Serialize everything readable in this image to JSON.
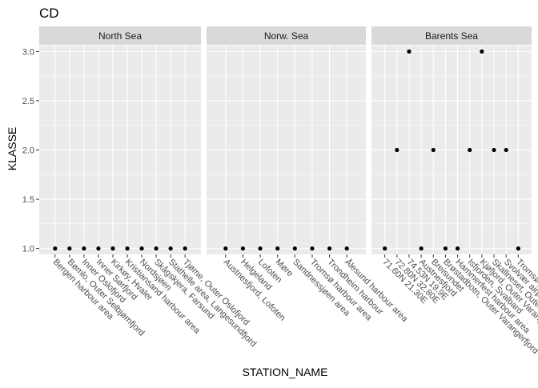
{
  "chart_data": {
    "type": "scatter",
    "title": "CD",
    "xlabel": "STATION_NAME",
    "ylabel": "KLASSE",
    "ylim": [
      0.94,
      3.06
    ],
    "yticks": [
      1.0,
      1.5,
      2.0,
      2.5,
      3.0
    ],
    "ytick_labels": [
      "1.0",
      "1.5",
      "2.0",
      "2.5",
      "3.0"
    ],
    "grid": true,
    "facet_type": "facet_wrap",
    "colors": {
      "panel_bg": "#ebebeb",
      "strip_bg": "#d9d9d9",
      "grid": "#ffffff",
      "point": "#000000",
      "text": "#4d4d4d",
      "title": "#000000"
    },
    "panels": [
      {
        "strip": "North Sea",
        "categories": [
          "Bergen harbour area",
          "Bømlo, Outer Selbjørnfjord",
          "Inner Oslofjord",
          "Inner Sørfjord",
          "Kirkøy, Hvaler",
          "Kristiansand harbour area",
          "Nordsjøen",
          "Skågskjera, Farsund",
          "Stathelle area, Langesundfjord",
          "Tjøme, Outer Oslofjord"
        ],
        "values": [
          1,
          1,
          1,
          1,
          1,
          1,
          1,
          1,
          1,
          1
        ]
      },
      {
        "strip": "Norw. Sea",
        "categories": [
          "Austnesfjord, Lofoten",
          "Helgeland",
          "Lofoten",
          "Møre",
          "Sandnessjøen area",
          "Tromsø harbour area",
          "Trondheim harbour",
          "Ålesund harbour area"
        ],
        "values": [
          1,
          1,
          1,
          1,
          1,
          1,
          1,
          1
        ]
      },
      {
        "strip": "Barents Sea",
        "categories": [
          "71.60N 21.30E",
          "72.80N 32.80E",
          "74.53N 19.9E",
          "Austnesfjord",
          "Breisundet",
          "Brøstadbotn, Outer Varangerfjord",
          "Hammerfest harbour area",
          "Isfjorden, Svalbard",
          "Kjøfjord, Outer Varangerfjord",
          "Skallneset, Outer Varangerfjord",
          "Svolvær airport area",
          "Tromsø harbour area"
        ],
        "values": [
          1,
          2,
          3,
          1,
          2,
          1,
          1,
          2,
          3,
          2,
          2,
          1
        ]
      }
    ]
  }
}
